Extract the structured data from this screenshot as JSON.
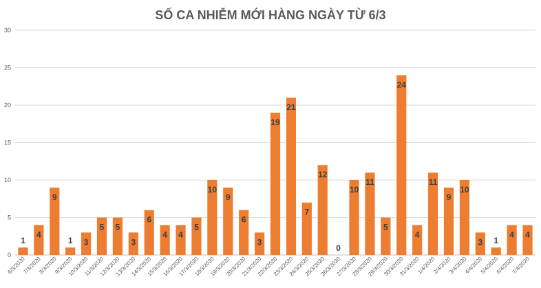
{
  "chart_data": {
    "type": "bar",
    "title": "SỐ CA NHIỄM MỚI HÀNG NGÀY TỪ 6/3",
    "xlabel": "",
    "ylabel": "",
    "ylim": [
      0,
      30
    ],
    "yticks": [
      0,
      5,
      10,
      15,
      20,
      25,
      30
    ],
    "grid": true,
    "bar_color": "#ED7D31",
    "categories": [
      "6/3/2020",
      "7/3/2020",
      "8/3/2020",
      "9/3/2020",
      "10/3/2020",
      "11/3/2020",
      "12/3/2020",
      "13/3/2020",
      "14/3/2020",
      "15/3/2020",
      "16/3/2020",
      "17/3/2020",
      "18/3/2020",
      "19/3/2020",
      "20/3/2020",
      "21/3/2020",
      "22/3/2020",
      "23/3/2020",
      "24/3/2020",
      "25/3/2020",
      "26/3/2020",
      "27/3/2020",
      "28/3/2020",
      "29/3/2020",
      "30/3/2020",
      "31/3/2020",
      "1/4/2020",
      "2/4/2020",
      "3/4/2020",
      "4/4/2020",
      "5/4/2020",
      "6/4/2020",
      "7/4/2020"
    ],
    "values": [
      1,
      4,
      9,
      1,
      3,
      5,
      5,
      3,
      6,
      4,
      4,
      5,
      10,
      9,
      6,
      3,
      19,
      21,
      7,
      12,
      0,
      10,
      11,
      5,
      24,
      4,
      11,
      9,
      10,
      3,
      1,
      4,
      4
    ],
    "data_labels": [
      "1",
      "4",
      "9",
      "1",
      "3",
      "5",
      "5",
      "3",
      "6",
      "4",
      "4",
      "5",
      "10",
      "9",
      "6",
      "3",
      "19",
      "21",
      "7",
      "12",
      "0",
      "10",
      "11",
      "5",
      "24",
      "4",
      "11",
      "9",
      "10",
      "3",
      "1",
      "4",
      "4"
    ]
  }
}
